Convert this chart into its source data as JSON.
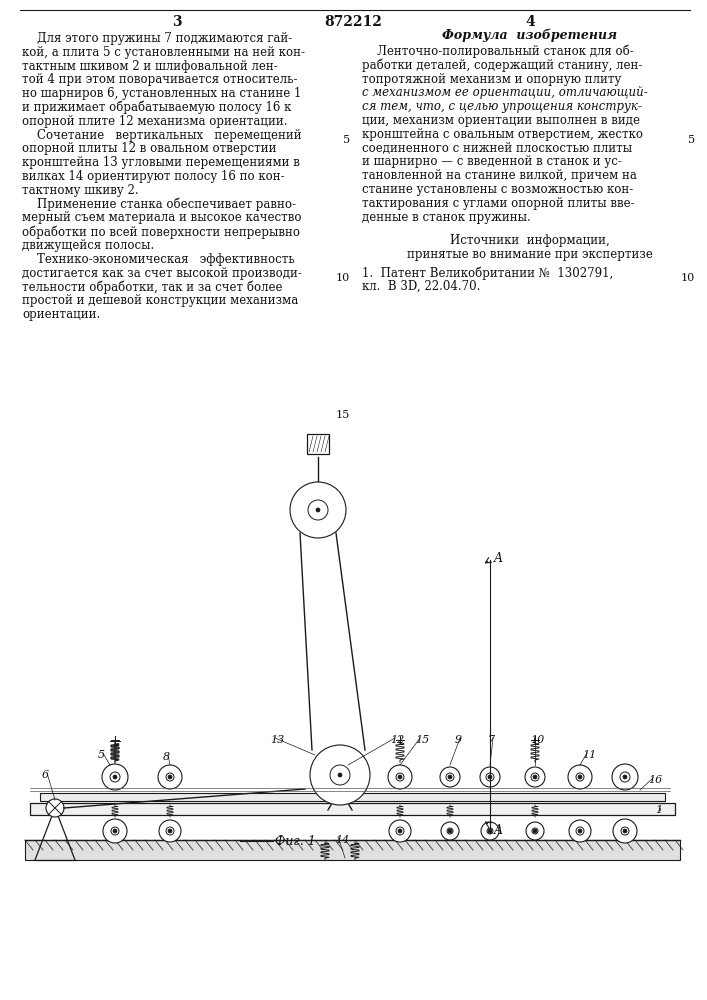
{
  "patent_number": "872212",
  "page_left": "3",
  "page_right": "4",
  "formula_header": "Формула  изобретения",
  "left_texts": [
    "    Для этого пружины 7 поджимаются гай-",
    "кой, а плита 5 с установленными на ней кон-",
    "тактным шкивом 2 и шлифовальной лен-",
    "той 4 при этом поворачивается относитель-",
    "но шарниров 6, установленных на станине 1",
    "и прижимает обрабатываемую полосу 16 к",
    "опорной плите 12 механизма ориентации.",
    "    Сочетание   вертикальных   перемещений",
    "опорной плиты 12 в овальном отверстии",
    "кронштейна 13 угловыми перемещениями в",
    "вилках 14 ориентируют полосу 16 по кон-",
    "тактному шкиву 2.",
    "    Применение станка обеспечивает равно-",
    "мерный съем материала и высокое качество",
    "обработки по всей поверхности непрерывно",
    "движущейся полосы.",
    "    Технико-экономическая   эффективность",
    "достигается как за счет высокой производи-",
    "тельности обработки, так и за счет более",
    "простой и дешевой конструкции механизма",
    "ориентации."
  ],
  "right_texts_normal": [
    "    Ленточно-полировальный станок для об-",
    "работки деталей, содержащий станину, лен-",
    "топротяжной механизм и опорную плиту",
    "с механизмом ее ориентации, отличающий-",
    "ся тем, что, с целью упрощения конструк-",
    "ции, механизм ориентации выполнен в виде",
    "кронштейна с овальным отверстием, жестко",
    "соединенного с нижней плоскостью плиты",
    "и шарнирно — с введенной в станок и ус-",
    "тановленной на станине вилкой, причем на",
    "станине установлены с возможностью кон-",
    "тактирования с углами опорной плиты вве-",
    "денные в станок пружины."
  ],
  "italic_lines": [
    3,
    4
  ],
  "sources_header": "Источники  информации,",
  "sources_sub": "принятые во внимание при экспертизе",
  "source1": "1.  Патент Великобритании №  1302791,",
  "source1b": "кл.  B 3D, 22.04.70.",
  "fig1_label": "Фиг. 1",
  "label_14": "14",
  "lnum_left": [
    [
      "5",
      860
    ],
    [
      "10",
      722
    ],
    [
      "15",
      585
    ]
  ],
  "lnum_right": [
    [
      "5",
      860
    ],
    [
      "10",
      722
    ]
  ]
}
